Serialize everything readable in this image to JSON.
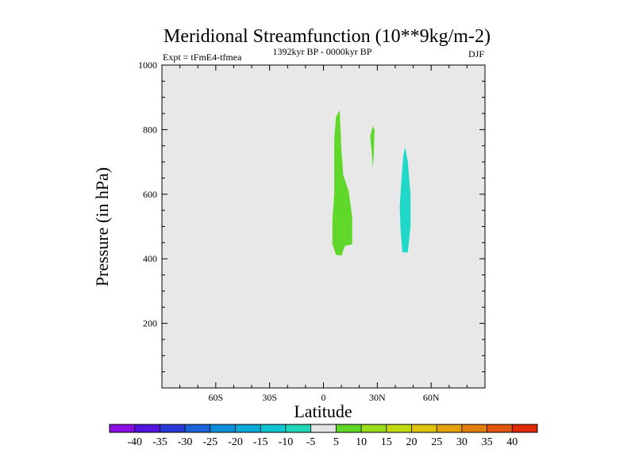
{
  "chart_data": {
    "type": "filled-contour",
    "title": "Meridional Streamfunction (10**9kg/m-2)",
    "left_string": "Expt = tFmE4-tfmea",
    "center_string": "1392kyr BP - 0000kyr BP",
    "right_string": "DJF",
    "xlabel": "Latitude",
    "ylabel": "Pressure (in hPa)",
    "x_range": [
      -90,
      90
    ],
    "y_range": [
      1000,
      0
    ],
    "x_ticks": [
      {
        "value": -60,
        "label": "60S"
      },
      {
        "value": -30,
        "label": "30S"
      },
      {
        "value": 0,
        "label": "0"
      },
      {
        "value": 30,
        "label": "30N"
      },
      {
        "value": 60,
        "label": "60N"
      }
    ],
    "y_ticks": [
      {
        "value": 200,
        "label": "200"
      },
      {
        "value": 400,
        "label": "400"
      },
      {
        "value": 600,
        "label": "600"
      },
      {
        "value": 800,
        "label": "800"
      },
      {
        "value": 1000,
        "label": "1000"
      }
    ],
    "background_color": "#e8e8e8",
    "regions": [
      {
        "name": "positive-cell-equatorial",
        "level": "5 to 10",
        "color": "#5fd82a",
        "points": [
          [
            5,
            445
          ],
          [
            7,
            412
          ],
          [
            10,
            410
          ],
          [
            12,
            440
          ],
          [
            16,
            445
          ],
          [
            16,
            530
          ],
          [
            14,
            610
          ],
          [
            11,
            660
          ],
          [
            10,
            740
          ],
          [
            9,
            860
          ],
          [
            7,
            840
          ],
          [
            6,
            770
          ],
          [
            6,
            600
          ],
          [
            5,
            520
          ]
        ]
      },
      {
        "name": "positive-cell-small",
        "level": "5 to 10",
        "color": "#5fd82a",
        "points": [
          [
            26,
            780
          ],
          [
            27,
            720
          ],
          [
            27.5,
            680
          ],
          [
            28,
            720
          ],
          [
            28.5,
            800
          ],
          [
            27.5,
            810
          ]
        ]
      },
      {
        "name": "negative-cell-midlat",
        "level": "-10 to -5",
        "color": "#1fd8c8",
        "points": [
          [
            43,
            490
          ],
          [
            44,
            420
          ],
          [
            47,
            420
          ],
          [
            48.5,
            500
          ],
          [
            48.5,
            600
          ],
          [
            47,
            700
          ],
          [
            45.5,
            745
          ],
          [
            44.5,
            720
          ],
          [
            43.5,
            650
          ],
          [
            42.5,
            560
          ]
        ]
      }
    ],
    "colorbar": {
      "labels": [
        "-40",
        "-35",
        "-30",
        "-25",
        "-20",
        "-15",
        "-10",
        "-5",
        "5",
        "10",
        "15",
        "20",
        "25",
        "30",
        "35",
        "40"
      ],
      "colors": [
        "#8a0ee0",
        "#5412e0",
        "#2a3ad8",
        "#1a64d8",
        "#0e8ed8",
        "#0ca8d8",
        "#10c4d2",
        "#20d6b8",
        "#e4e4e4",
        "#5fd82a",
        "#98dc1c",
        "#c2da12",
        "#e0c40c",
        "#e4a20c",
        "#e27e0c",
        "#e0560c",
        "#e02a08"
      ]
    }
  }
}
